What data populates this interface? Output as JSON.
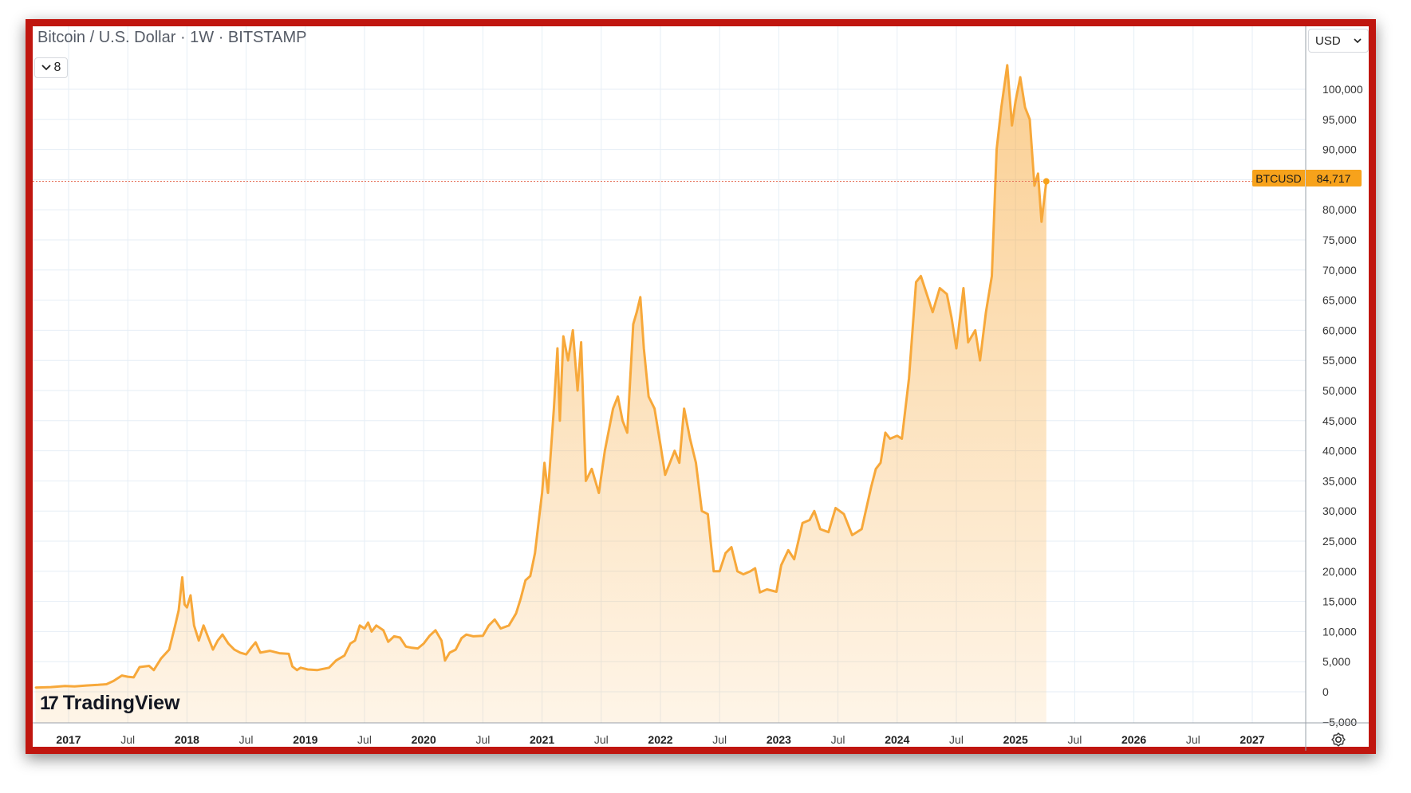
{
  "header": {
    "title": "Bitcoin / U.S. Dollar · 1W · BITSTAMP",
    "collapse_count": "8",
    "currency": "USD"
  },
  "price_tag": {
    "symbol": "BTCUSD",
    "value": "84,717"
  },
  "branding": {
    "logo_text": "TradingView"
  },
  "colors": {
    "accent": "#f7a21b",
    "line": "#f7a83a",
    "frame": "#c0160f",
    "grid": "#e6eef6",
    "price_line": "#e6725a"
  },
  "icons": {
    "collapse": "chevron-down-icon",
    "currency": "chevron-down-icon",
    "settings": "gear-icon"
  },
  "chart_data": {
    "type": "area",
    "ylim": [
      -5000,
      105000
    ],
    "y_ticks": [
      0,
      5000,
      10000,
      15000,
      20000,
      25000,
      30000,
      35000,
      40000,
      45000,
      50000,
      55000,
      60000,
      65000,
      70000,
      75000,
      80000,
      85000,
      90000,
      95000,
      100000
    ],
    "y_tick_labels": [
      "0",
      "5,000",
      "10,000",
      "15,000",
      "20,000",
      "25,000",
      "30,000",
      "35,000",
      "40,000",
      "45,000",
      "50,000",
      "55,000",
      "60,000",
      "65,000",
      "70,000",
      "75,000",
      "80,000",
      "85,000",
      "90,000",
      "95,000",
      "100,000"
    ],
    "y_bottom_label": "−5,000",
    "x_ticks": [
      {
        "label": "2017",
        "x": 2017.0,
        "bold": true
      },
      {
        "label": "Jul",
        "x": 2017.5,
        "bold": false
      },
      {
        "label": "2018",
        "x": 2018.0,
        "bold": true
      },
      {
        "label": "Jul",
        "x": 2018.5,
        "bold": false
      },
      {
        "label": "2019",
        "x": 2019.0,
        "bold": true
      },
      {
        "label": "Jul",
        "x": 2019.5,
        "bold": false
      },
      {
        "label": "2020",
        "x": 2020.0,
        "bold": true
      },
      {
        "label": "Jul",
        "x": 2020.5,
        "bold": false
      },
      {
        "label": "2021",
        "x": 2021.0,
        "bold": true
      },
      {
        "label": "Jul",
        "x": 2021.5,
        "bold": false
      },
      {
        "label": "2022",
        "x": 2022.0,
        "bold": true
      },
      {
        "label": "Jul",
        "x": 2022.5,
        "bold": false
      },
      {
        "label": "2023",
        "x": 2023.0,
        "bold": true
      },
      {
        "label": "Jul",
        "x": 2023.5,
        "bold": false
      },
      {
        "label": "2024",
        "x": 2024.0,
        "bold": true
      },
      {
        "label": "Jul",
        "x": 2024.5,
        "bold": false
      },
      {
        "label": "2025",
        "x": 2025.0,
        "bold": true
      },
      {
        "label": "Jul",
        "x": 2025.5,
        "bold": false
      },
      {
        "label": "2026",
        "x": 2026.0,
        "bold": true
      },
      {
        "label": "Jul",
        "x": 2026.5,
        "bold": false
      },
      {
        "label": "2027",
        "x": 2027.0,
        "bold": true
      }
    ],
    "xlim": [
      2016.7,
      2027.45
    ],
    "current_price": 84717,
    "series": [
      {
        "points": [
          [
            2016.72,
            700
          ],
          [
            2016.85,
            780
          ],
          [
            2016.97,
            960
          ],
          [
            2017.05,
            900
          ],
          [
            2017.15,
            1050
          ],
          [
            2017.25,
            1150
          ],
          [
            2017.32,
            1250
          ],
          [
            2017.38,
            1800
          ],
          [
            2017.45,
            2700
          ],
          [
            2017.5,
            2500
          ],
          [
            2017.55,
            2400
          ],
          [
            2017.6,
            4100
          ],
          [
            2017.68,
            4300
          ],
          [
            2017.72,
            3600
          ],
          [
            2017.78,
            5500
          ],
          [
            2017.85,
            7000
          ],
          [
            2017.9,
            11000
          ],
          [
            2017.93,
            13500
          ],
          [
            2017.96,
            19000
          ],
          [
            2017.98,
            14500
          ],
          [
            2018.0,
            14000
          ],
          [
            2018.03,
            16000
          ],
          [
            2018.06,
            11000
          ],
          [
            2018.1,
            8500
          ],
          [
            2018.14,
            11000
          ],
          [
            2018.18,
            9000
          ],
          [
            2018.22,
            7000
          ],
          [
            2018.26,
            8500
          ],
          [
            2018.3,
            9500
          ],
          [
            2018.35,
            8000
          ],
          [
            2018.4,
            7000
          ],
          [
            2018.45,
            6500
          ],
          [
            2018.5,
            6200
          ],
          [
            2018.55,
            7500
          ],
          [
            2018.58,
            8200
          ],
          [
            2018.62,
            6500
          ],
          [
            2018.7,
            6800
          ],
          [
            2018.78,
            6400
          ],
          [
            2018.86,
            6300
          ],
          [
            2018.89,
            4200
          ],
          [
            2018.93,
            3600
          ],
          [
            2018.96,
            4000
          ],
          [
            2019.02,
            3700
          ],
          [
            2019.1,
            3600
          ],
          [
            2019.2,
            4000
          ],
          [
            2019.26,
            5200
          ],
          [
            2019.33,
            6000
          ],
          [
            2019.38,
            8000
          ],
          [
            2019.42,
            8500
          ],
          [
            2019.46,
            11000
          ],
          [
            2019.5,
            10500
          ],
          [
            2019.53,
            11500
          ],
          [
            2019.56,
            10000
          ],
          [
            2019.6,
            11000
          ],
          [
            2019.66,
            10200
          ],
          [
            2019.7,
            8300
          ],
          [
            2019.75,
            9200
          ],
          [
            2019.8,
            9000
          ],
          [
            2019.85,
            7500
          ],
          [
            2019.9,
            7300
          ],
          [
            2019.95,
            7200
          ],
          [
            2020.0,
            8000
          ],
          [
            2020.05,
            9300
          ],
          [
            2020.1,
            10200
          ],
          [
            2020.15,
            8500
          ],
          [
            2020.18,
            5200
          ],
          [
            2020.22,
            6500
          ],
          [
            2020.27,
            7000
          ],
          [
            2020.32,
            8900
          ],
          [
            2020.36,
            9500
          ],
          [
            2020.42,
            9200
          ],
          [
            2020.5,
            9300
          ],
          [
            2020.55,
            11000
          ],
          [
            2020.6,
            12000
          ],
          [
            2020.65,
            10500
          ],
          [
            2020.72,
            11000
          ],
          [
            2020.78,
            13000
          ],
          [
            2020.82,
            15500
          ],
          [
            2020.86,
            18500
          ],
          [
            2020.9,
            19200
          ],
          [
            2020.94,
            23000
          ],
          [
            2020.97,
            28000
          ],
          [
            2021.0,
            33000
          ],
          [
            2021.02,
            38000
          ],
          [
            2021.05,
            33000
          ],
          [
            2021.1,
            47000
          ],
          [
            2021.13,
            57000
          ],
          [
            2021.15,
            45000
          ],
          [
            2021.18,
            59000
          ],
          [
            2021.22,
            55000
          ],
          [
            2021.26,
            60000
          ],
          [
            2021.3,
            50000
          ],
          [
            2021.33,
            58000
          ],
          [
            2021.37,
            35000
          ],
          [
            2021.42,
            37000
          ],
          [
            2021.48,
            33000
          ],
          [
            2021.53,
            40000
          ],
          [
            2021.6,
            47000
          ],
          [
            2021.64,
            49000
          ],
          [
            2021.68,
            45000
          ],
          [
            2021.72,
            43000
          ],
          [
            2021.77,
            61000
          ],
          [
            2021.8,
            63000
          ],
          [
            2021.83,
            65500
          ],
          [
            2021.86,
            57000
          ],
          [
            2021.9,
            49000
          ],
          [
            2021.95,
            47000
          ],
          [
            2022.0,
            41000
          ],
          [
            2022.04,
            36000
          ],
          [
            2022.08,
            38000
          ],
          [
            2022.12,
            40000
          ],
          [
            2022.16,
            38000
          ],
          [
            2022.2,
            47000
          ],
          [
            2022.25,
            42000
          ],
          [
            2022.3,
            38000
          ],
          [
            2022.35,
            30000
          ],
          [
            2022.4,
            29500
          ],
          [
            2022.45,
            20000
          ],
          [
            2022.5,
            20000
          ],
          [
            2022.55,
            23000
          ],
          [
            2022.6,
            24000
          ],
          [
            2022.65,
            20000
          ],
          [
            2022.7,
            19500
          ],
          [
            2022.76,
            20000
          ],
          [
            2022.8,
            20500
          ],
          [
            2022.84,
            16500
          ],
          [
            2022.9,
            17000
          ],
          [
            2022.98,
            16600
          ],
          [
            2023.02,
            21000
          ],
          [
            2023.08,
            23500
          ],
          [
            2023.13,
            22000
          ],
          [
            2023.2,
            28000
          ],
          [
            2023.26,
            28500
          ],
          [
            2023.3,
            30000
          ],
          [
            2023.35,
            27000
          ],
          [
            2023.42,
            26500
          ],
          [
            2023.48,
            30500
          ],
          [
            2023.55,
            29500
          ],
          [
            2023.62,
            26000
          ],
          [
            2023.7,
            27000
          ],
          [
            2023.78,
            34000
          ],
          [
            2023.82,
            37000
          ],
          [
            2023.86,
            38000
          ],
          [
            2023.9,
            43000
          ],
          [
            2023.94,
            42000
          ],
          [
            2024.0,
            42500
          ],
          [
            2024.04,
            42000
          ],
          [
            2024.1,
            52000
          ],
          [
            2024.16,
            68000
          ],
          [
            2024.2,
            69000
          ],
          [
            2024.25,
            66000
          ],
          [
            2024.3,
            63000
          ],
          [
            2024.36,
            67000
          ],
          [
            2024.42,
            66000
          ],
          [
            2024.46,
            62000
          ],
          [
            2024.5,
            57000
          ],
          [
            2024.56,
            67000
          ],
          [
            2024.6,
            58000
          ],
          [
            2024.66,
            60000
          ],
          [
            2024.7,
            55000
          ],
          [
            2024.75,
            63000
          ],
          [
            2024.8,
            69000
          ],
          [
            2024.84,
            90000
          ],
          [
            2024.88,
            97000
          ],
          [
            2024.93,
            104000
          ],
          [
            2024.97,
            94000
          ],
          [
            2025.0,
            98000
          ],
          [
            2025.04,
            102000
          ],
          [
            2025.08,
            97000
          ],
          [
            2025.12,
            95000
          ],
          [
            2025.16,
            84000
          ],
          [
            2025.19,
            86000
          ],
          [
            2025.22,
            78000
          ],
          [
            2025.26,
            84717
          ]
        ]
      }
    ]
  }
}
